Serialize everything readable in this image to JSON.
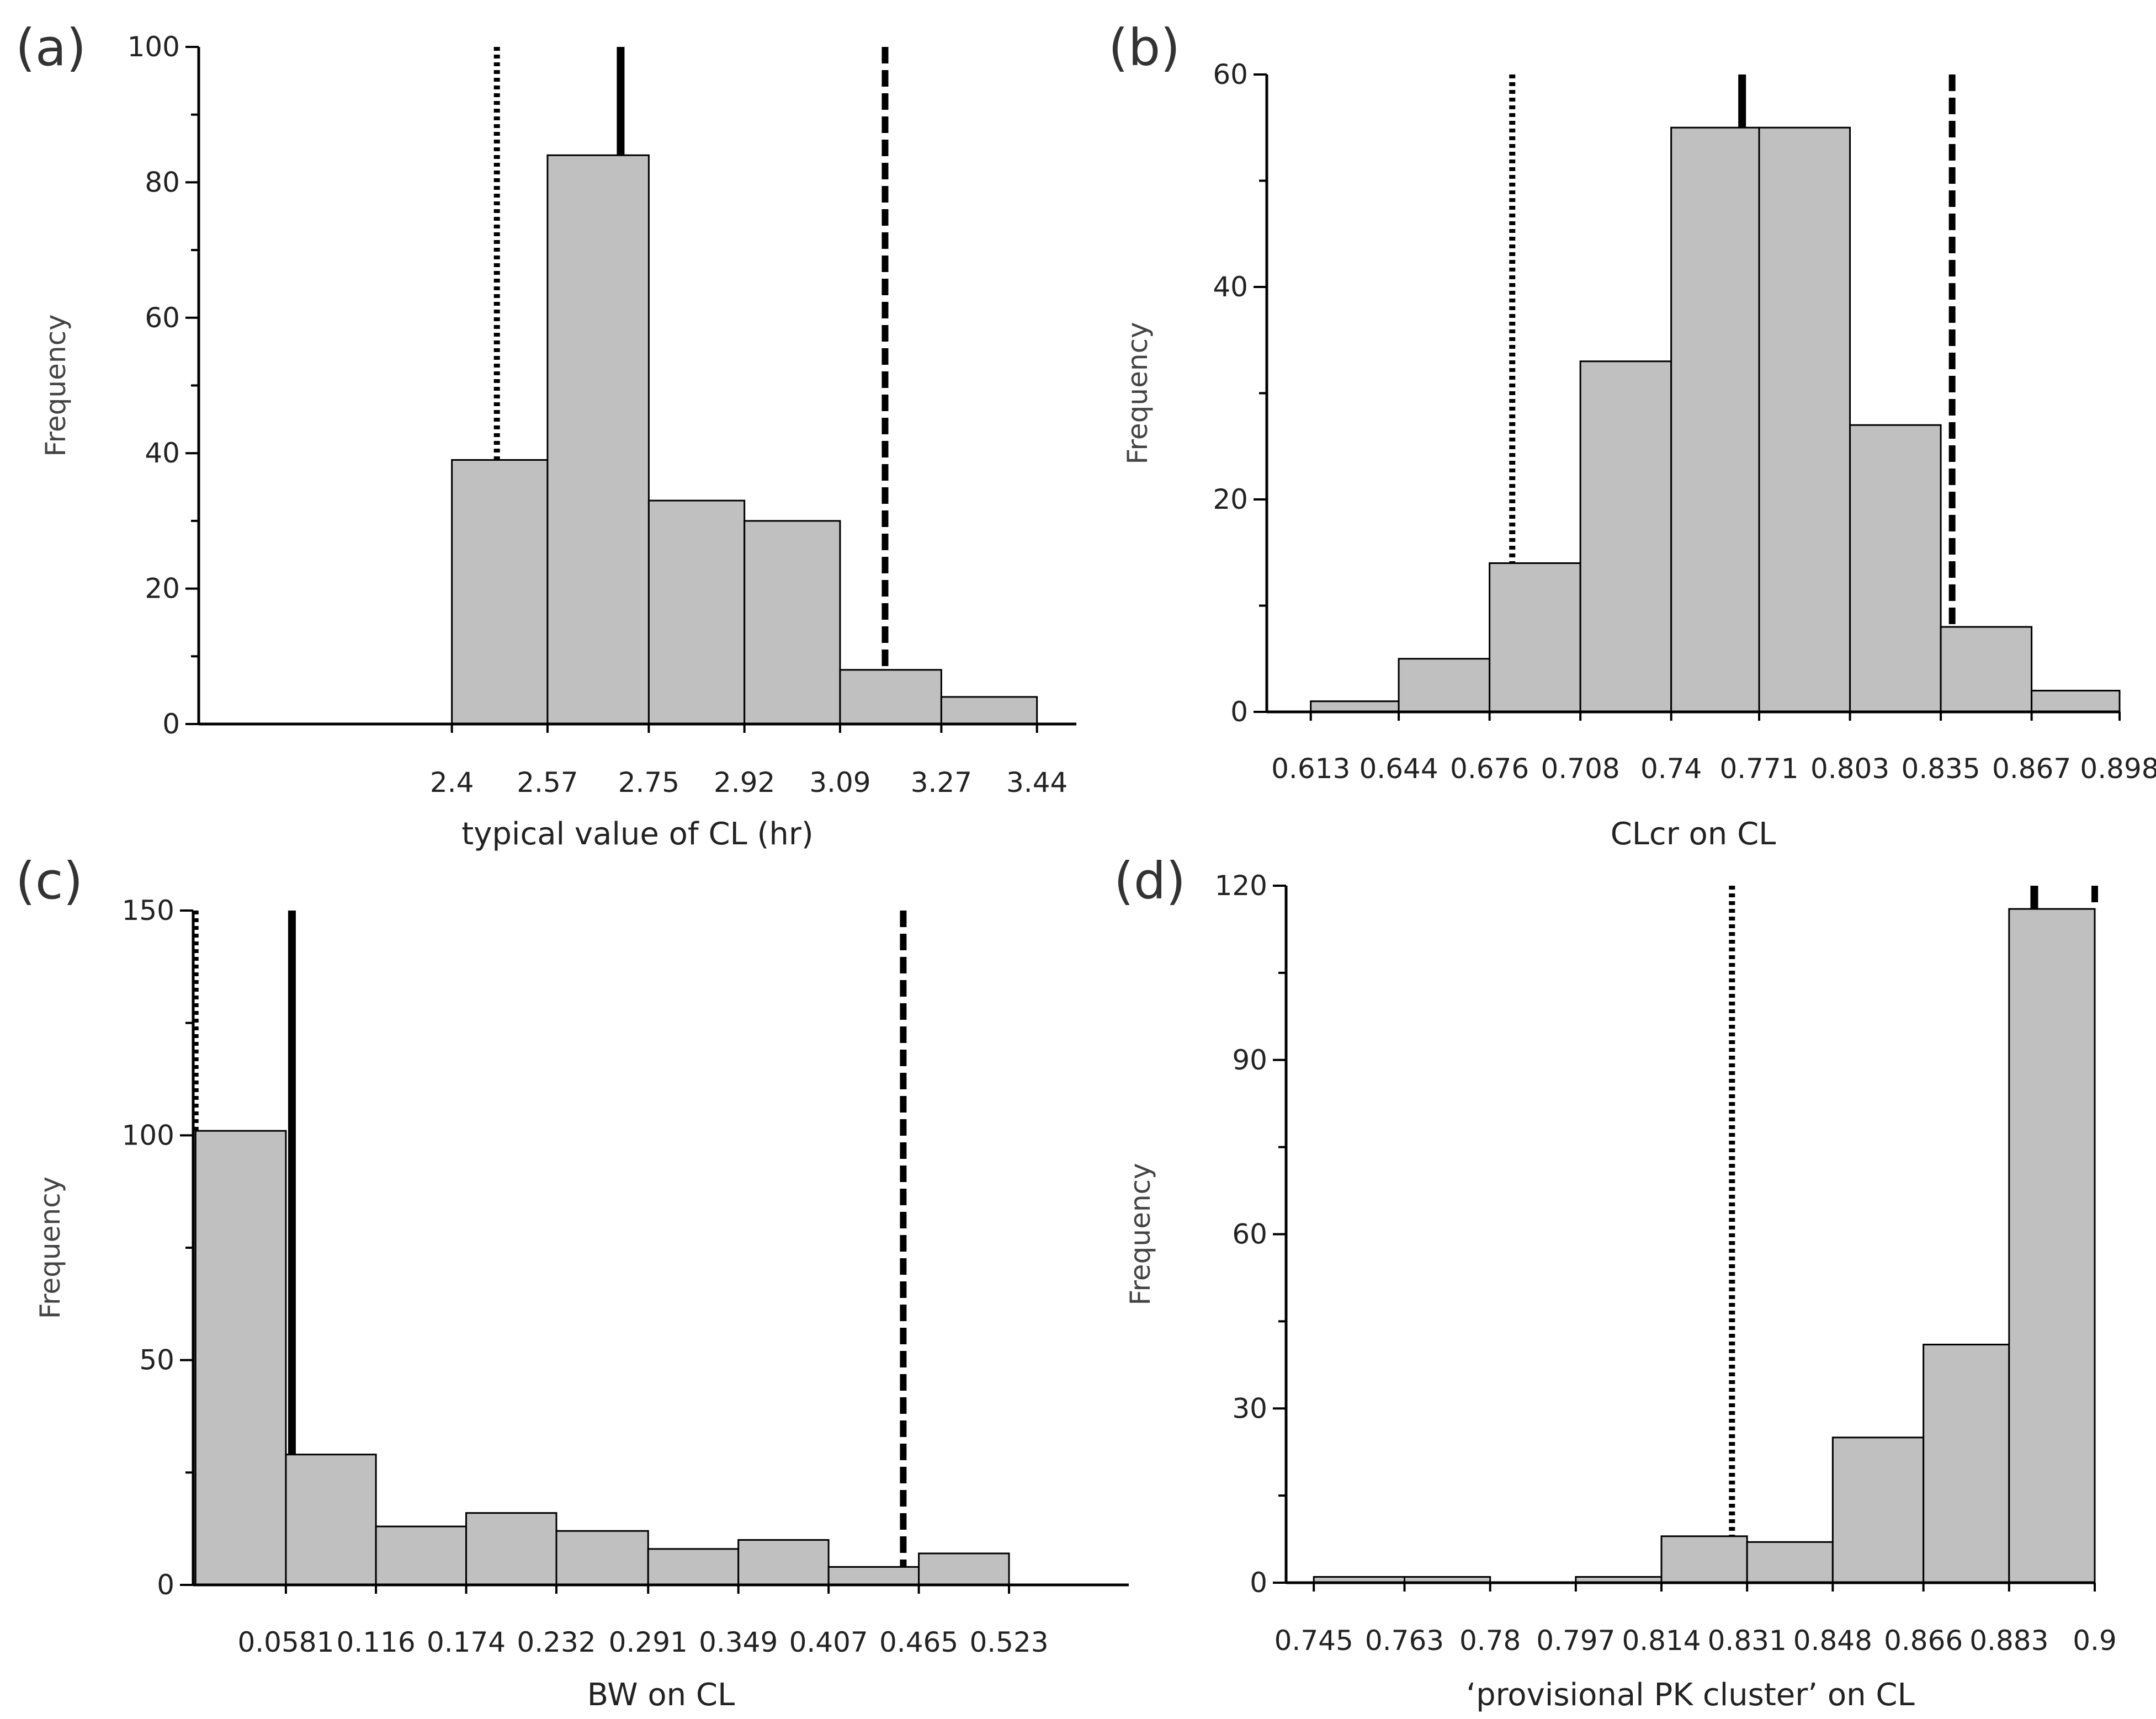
{
  "figure_labels": {
    "a": "(a)",
    "b": "(b)",
    "c": "(c)",
    "d": "(d)"
  },
  "colors": {
    "bar_fill": "#c0c0c0",
    "bar_stroke": "#000000",
    "line": "#000000"
  },
  "chart_data": [
    {
      "id": "a",
      "type": "bar",
      "title": "",
      "xlabel": "typical value of CL (hr)",
      "ylabel": "Frequency",
      "ylim": [
        0,
        100
      ],
      "xlim": [
        1.95,
        3.51
      ],
      "y_ticks": [
        0,
        20,
        40,
        60,
        80,
        100
      ],
      "x_tick_labels": [
        "2.4",
        "2.57",
        "2.75",
        "2.92",
        "3.09",
        "3.27",
        "3.44"
      ],
      "bin_edges": [
        2.4,
        2.57,
        2.75,
        2.92,
        3.09,
        3.27,
        3.44
      ],
      "values": [
        39,
        84,
        33,
        30,
        8,
        4
      ],
      "reference_lines": [
        {
          "name": "lower",
          "style": "dotted",
          "x": 2.48
        },
        {
          "name": "median",
          "style": "solid",
          "x": 2.7
        },
        {
          "name": "upper",
          "style": "dashed",
          "x": 3.17
        }
      ]
    },
    {
      "id": "b",
      "type": "bar",
      "title": "",
      "xlabel": "CLcr on CL",
      "ylabel": "Frequency",
      "ylim": [
        0,
        60
      ],
      "xlim": [
        0.5975,
        0.898
      ],
      "y_ticks": [
        0,
        20,
        40,
        60
      ],
      "x_tick_labels": [
        "0.613",
        "0.644",
        "0.676",
        "0.708",
        "0.74",
        "0.771",
        "0.803",
        "0.835",
        "0.867",
        "0.898"
      ],
      "bin_edges": [
        0.613,
        0.644,
        0.676,
        0.708,
        0.74,
        0.771,
        0.803,
        0.835,
        0.867,
        0.898
      ],
      "values": [
        1,
        5,
        14,
        33,
        55,
        55,
        27,
        8,
        2
      ],
      "reference_lines": [
        {
          "name": "lower",
          "style": "dotted",
          "x": 0.684
        },
        {
          "name": "median",
          "style": "solid",
          "x": 0.765
        },
        {
          "name": "upper",
          "style": "dashed",
          "x": 0.839
        }
      ]
    },
    {
      "id": "c",
      "type": "bar",
      "title": "",
      "xlabel": "BW on CL",
      "ylabel": "Frequency",
      "ylim": [
        0,
        150
      ],
      "xlim": [
        -0.0015,
        0.6
      ],
      "y_ticks": [
        0,
        50,
        100,
        150
      ],
      "x_tick_labels": [
        "0.0581",
        "0.116",
        "0.174",
        "0.232",
        "0.291",
        "0.349",
        "0.407",
        "0.465",
        "0.523"
      ],
      "bin_edges": [
        0,
        0.0581,
        0.116,
        0.174,
        0.232,
        0.291,
        0.349,
        0.407,
        0.465,
        0.523
      ],
      "values": [
        101,
        29,
        13,
        16,
        12,
        8,
        10,
        4,
        7
      ],
      "reference_lines": [
        {
          "name": "lower",
          "style": "dotted",
          "x": 0.0
        },
        {
          "name": "median",
          "style": "solid",
          "x": 0.062
        },
        {
          "name": "upper",
          "style": "dashed",
          "x": 0.455
        }
      ]
    },
    {
      "id": "d",
      "type": "bar",
      "title": "",
      "xlabel": "‘provisional PK cluster’ on CL",
      "ylabel": "Frequency",
      "ylim": [
        0,
        120
      ],
      "xlim": [
        0.7395,
        0.9
      ],
      "y_ticks": [
        0,
        30,
        60,
        90,
        120
      ],
      "x_tick_labels": [
        "0.745",
        "0.763",
        "0.78",
        "0.797",
        "0.814",
        "0.831",
        "0.848",
        "0.866",
        "0.883",
        "0.9"
      ],
      "bin_edges": [
        0.745,
        0.763,
        0.78,
        0.797,
        0.814,
        0.831,
        0.848,
        0.866,
        0.883,
        0.9
      ],
      "values": [
        1,
        1,
        0,
        1,
        8,
        7,
        25,
        41,
        116
      ],
      "reference_lines": [
        {
          "name": "lower",
          "style": "dotted",
          "x": 0.828
        },
        {
          "name": "median",
          "style": "solid",
          "x": 0.888
        },
        {
          "name": "upper",
          "style": "dashed",
          "x": 0.9
        }
      ]
    }
  ]
}
